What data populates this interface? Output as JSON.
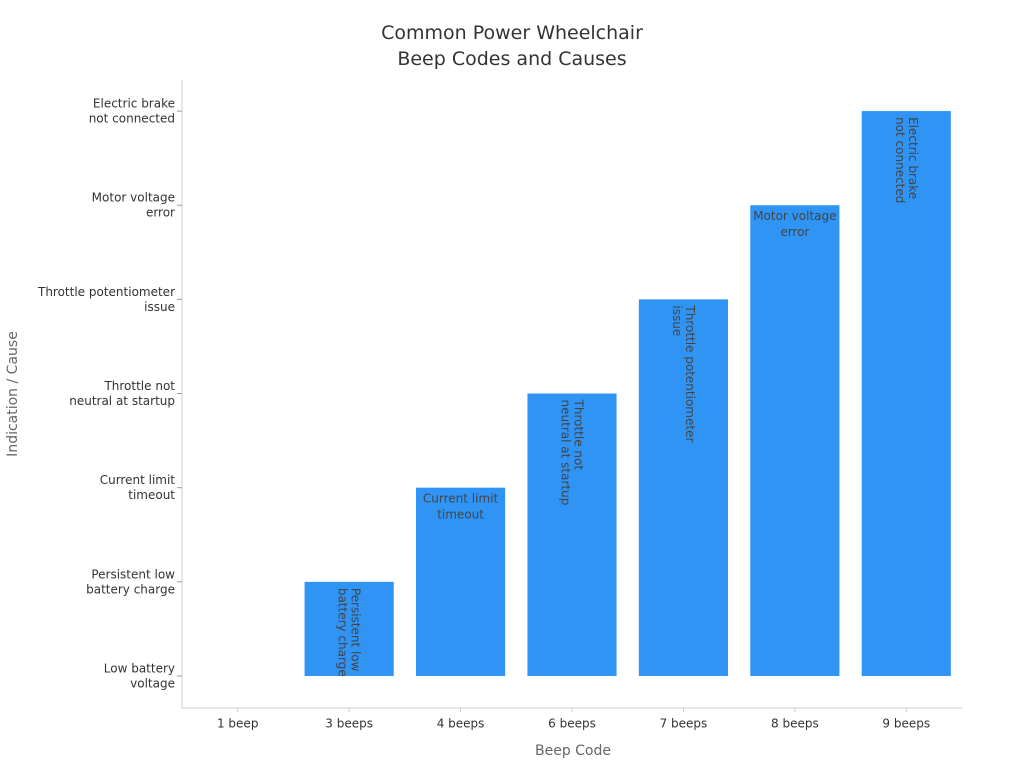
{
  "chart_data": {
    "type": "bar",
    "title": "Common Power Wheelchair\nBeep Codes and Causes",
    "x_label": "Beep Code",
    "y_label": "Indication / Cause",
    "categories": [
      "1 beep",
      "3 beeps",
      "4 beeps",
      "6 beeps",
      "7 beeps",
      "8 beeps",
      "9 beeps"
    ],
    "values": [
      0,
      1,
      2,
      3,
      4,
      5,
      6
    ],
    "value_labels": [
      null,
      "Persistent low\nbattery charge",
      "Current limit\ntimeout",
      "Throttle not\nneutral at startup",
      "Throttle potentiometer\nissue",
      "Motor voltage\nerror",
      "Electric brake\nnot connected"
    ],
    "color": "#3094f5",
    "ylim": [
      -0.34,
      6.33
    ],
    "yticks": [
      {
        "value": 0,
        "label": "Low battery\nvoltage"
      },
      {
        "value": 1,
        "label": "Persistent low\nbattery charge"
      },
      {
        "value": 2,
        "label": "Current limit\ntimeout"
      },
      {
        "value": 3,
        "label": "Throttle not\nneutral at startup"
      },
      {
        "value": 4,
        "label": "Throttle potentiometer\nissue"
      },
      {
        "value": 5,
        "label": "Motor voltage\nerror"
      },
      {
        "value": 6,
        "label": "Electric brake\nnot connected"
      }
    ],
    "grid": false
  }
}
